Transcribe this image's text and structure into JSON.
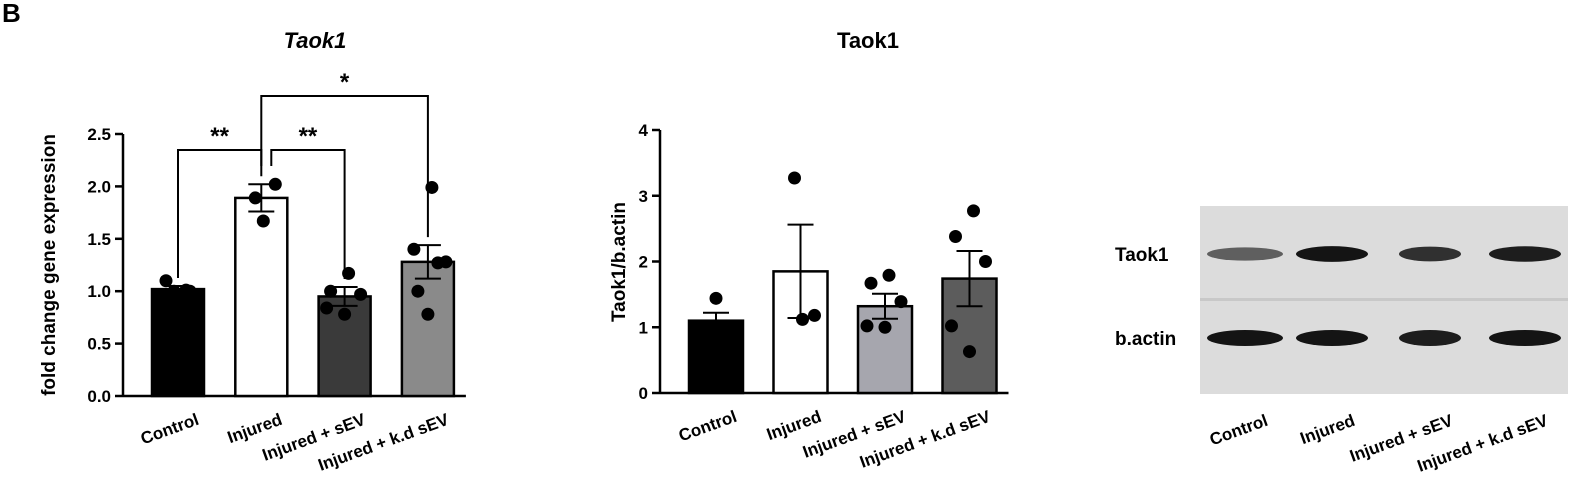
{
  "panel_label": "B",
  "chart_data": [
    {
      "type": "bar",
      "title": "Taok1",
      "title_italic": true,
      "ylabel": "fold change gene expression",
      "xlabel": "",
      "categories": [
        "Control",
        "Injured",
        "Injured + sEV",
        "Injured + k.d sEV"
      ],
      "values": [
        1.02,
        1.89,
        0.95,
        1.28
      ],
      "sem": [
        0.03,
        0.13,
        0.09,
        0.16
      ],
      "points": [
        [
          1.1,
          1.01,
          1.0,
          1.0
        ],
        [
          1.89,
          2.02,
          1.67
        ],
        [
          1.17,
          1.0,
          0.97,
          0.84,
          0.78
        ],
        [
          1.99,
          1.4,
          1.27,
          1.28,
          1.0,
          0.78
        ]
      ],
      "ylim": [
        0,
        2.5
      ],
      "yticks": [
        "0.0",
        "0.5",
        "1.0",
        "1.5",
        "2.0",
        "2.5"
      ],
      "bar_colors": [
        "#000000",
        "#ffffff",
        "#3a3a3a",
        "#8a8a8a"
      ],
      "significance": [
        {
          "from": 0,
          "to": 1,
          "label": "**"
        },
        {
          "from": 1,
          "to": 2,
          "label": "**"
        },
        {
          "from": 1,
          "to": 3,
          "label": "*"
        }
      ]
    },
    {
      "type": "bar",
      "title": "Taok1",
      "title_italic": false,
      "ylabel": "Taok1/b.actin",
      "xlabel": "",
      "categories": [
        "Control",
        "Injured",
        "Injured + sEV",
        "Injured + k.d sEV"
      ],
      "values": [
        1.1,
        1.85,
        1.32,
        1.74
      ],
      "sem": [
        0.12,
        0.71,
        0.19,
        0.42
      ],
      "points": [
        [
          1.44
        ],
        [
          3.27,
          1.18,
          1.12
        ],
        [
          1.79,
          1.67,
          1.39,
          1.02,
          1.0
        ],
        [
          2.77,
          2.38,
          2.0,
          1.02,
          0.63
        ]
      ],
      "ylim": [
        0,
        4
      ],
      "yticks": [
        "0",
        "1",
        "2",
        "3",
        "4"
      ],
      "bar_colors": [
        "#000000",
        "#ffffff",
        "#a6a6ae",
        "#5c5c5c"
      ],
      "significance": []
    }
  ],
  "blot": {
    "row_labels": [
      "Taok1",
      "b.actin"
    ],
    "lane_labels": [
      "Control",
      "Injured",
      "Injured + sEV",
      "Injured + k.d sEV"
    ],
    "band_intensity": {
      "Taok1": [
        0.55,
        0.95,
        0.8,
        0.9
      ],
      "b.actin": [
        0.95,
        0.95,
        0.9,
        0.95
      ]
    }
  }
}
